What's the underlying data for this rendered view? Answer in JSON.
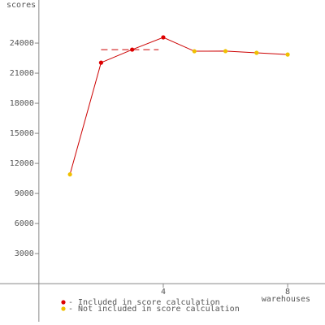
{
  "chart_data": {
    "type": "line",
    "y_label": "scores",
    "x_label": "warehouses",
    "x": [
      1,
      2,
      3,
      4,
      5,
      6,
      7,
      8
    ],
    "values": [
      10900,
      22050,
      23350,
      24570,
      23190,
      23200,
      23030,
      22860
    ],
    "included": [
      false,
      true,
      true,
      true,
      false,
      false,
      false,
      false
    ],
    "line_color": "#cc0000",
    "score_line": {
      "value": 23350,
      "x": [
        2,
        3.85
      ]
    },
    "xlim": [
      -1.25,
      9.2
    ],
    "ylim": [
      -3800,
      28300
    ],
    "xticks": [
      4,
      8
    ],
    "yticks": [
      3000,
      6000,
      9000,
      12000,
      15000,
      18000,
      21000,
      24000
    ],
    "legend": [
      {
        "label": "- Included in score calculation",
        "color": "#dd0000"
      },
      {
        "label": "- Not included in score calculation",
        "color": "#f0c000"
      }
    ]
  }
}
